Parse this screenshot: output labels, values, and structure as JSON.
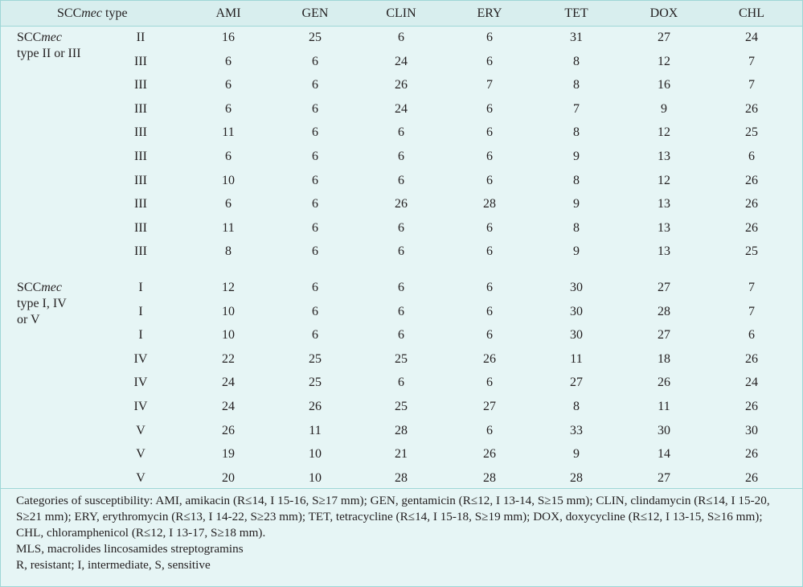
{
  "table": {
    "header": {
      "type_label_prefix": "SCC",
      "type_label_italic": "mec",
      "type_label_suffix": " type",
      "columns": [
        "AMI",
        "GEN",
        "CLIN",
        "ERY",
        "TET",
        "DOX",
        "CHL"
      ]
    },
    "groups": [
      {
        "label_prefix": "SCC",
        "label_italic": "mec",
        "label_line2": "type II or III",
        "label_line3": "",
        "rows": [
          {
            "type": "II",
            "values": [
              "16",
              "25",
              "6",
              "6",
              "31",
              "27",
              "24"
            ]
          },
          {
            "type": "III",
            "values": [
              "6",
              "6",
              "24",
              "6",
              "8",
              "12",
              "7"
            ]
          },
          {
            "type": "III",
            "values": [
              "6",
              "6",
              "26",
              "7",
              "8",
              "16",
              "7"
            ]
          },
          {
            "type": "III",
            "values": [
              "6",
              "6",
              "24",
              "6",
              "7",
              "9",
              "26"
            ]
          },
          {
            "type": "III",
            "values": [
              "11",
              "6",
              "6",
              "6",
              "8",
              "12",
              "25"
            ]
          },
          {
            "type": "III",
            "values": [
              "6",
              "6",
              "6",
              "6",
              "9",
              "13",
              "6"
            ]
          },
          {
            "type": "III",
            "values": [
              "10",
              "6",
              "6",
              "6",
              "8",
              "12",
              "26"
            ]
          },
          {
            "type": "III",
            "values": [
              "6",
              "6",
              "26",
              "28",
              "9",
              "13",
              "26"
            ]
          },
          {
            "type": "III",
            "values": [
              "11",
              "6",
              "6",
              "6",
              "8",
              "13",
              "26"
            ]
          },
          {
            "type": "III",
            "values": [
              "8",
              "6",
              "6",
              "6",
              "9",
              "13",
              "25"
            ]
          }
        ]
      },
      {
        "label_prefix": "SCC",
        "label_italic": "mec",
        "label_line2": "type I, IV",
        "label_line3": "or V",
        "rows": [
          {
            "type": "I",
            "values": [
              "12",
              "6",
              "6",
              "6",
              "30",
              "27",
              "7"
            ]
          },
          {
            "type": "I",
            "values": [
              "10",
              "6",
              "6",
              "6",
              "30",
              "28",
              "7"
            ]
          },
          {
            "type": "I",
            "values": [
              "10",
              "6",
              "6",
              "6",
              "30",
              "27",
              "6"
            ]
          },
          {
            "type": "IV",
            "values": [
              "22",
              "25",
              "25",
              "26",
              "11",
              "18",
              "26"
            ]
          },
          {
            "type": "IV",
            "values": [
              "24",
              "25",
              "6",
              "6",
              "27",
              "26",
              "24"
            ]
          },
          {
            "type": "IV",
            "values": [
              "24",
              "26",
              "25",
              "27",
              "8",
              "11",
              "26"
            ]
          },
          {
            "type": "V",
            "values": [
              "26",
              "11",
              "28",
              "6",
              "33",
              "30",
              "30"
            ]
          },
          {
            "type": "V",
            "values": [
              "19",
              "10",
              "21",
              "26",
              "9",
              "14",
              "26"
            ]
          },
          {
            "type": "V",
            "values": [
              "20",
              "10",
              "28",
              "28",
              "28",
              "27",
              "26"
            ]
          }
        ]
      }
    ]
  },
  "footnotes": [
    "Categories of susceptibility: AMI, amikacin (R≤14, I 15-16, S≥17 mm); GEN, gentamicin (R≤12, I 13-14, S≥15 mm); CLIN, clindamycin (R≤14, I 15-20, S≥21 mm); ERY, erythromycin (R≤13, I 14-22, S≥23 mm); TET, tetracycline (R≤14, I 15-18, S≥19 mm); DOX, doxycycline (R≤12, I 13-15, S≥16 mm); CHL, chloramphenicol (R≤12, I 13-17, S≥18 mm).",
    "MLS, macrolides lincosamides streptogramins",
    "R, resistant; I, intermediate, S, sensitive"
  ],
  "colors": {
    "header_bg": "#d8eeee",
    "body_bg": "#e6f5f5",
    "border": "#9fd6d6",
    "text": "#231f20"
  }
}
